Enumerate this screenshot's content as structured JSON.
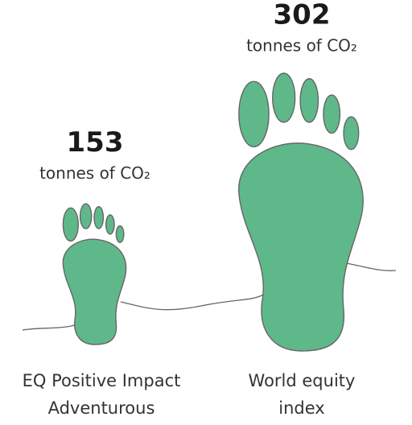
{
  "chart_data": {
    "type": "footprint",
    "categories": [
      "EQ Positive Impact Adventurous",
      "World equity index"
    ],
    "values": [
      153,
      302
    ],
    "unit": "tonnes of CO₂",
    "color": "#5fb88a"
  }
}
